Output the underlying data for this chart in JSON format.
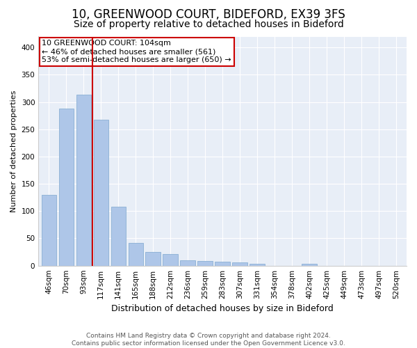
{
  "title1": "10, GREENWOOD COURT, BIDEFORD, EX39 3FS",
  "title2": "Size of property relative to detached houses in Bideford",
  "xlabel": "Distribution of detached houses by size in Bideford",
  "ylabel": "Number of detached properties",
  "categories": [
    "46sqm",
    "70sqm",
    "93sqm",
    "117sqm",
    "141sqm",
    "165sqm",
    "188sqm",
    "212sqm",
    "236sqm",
    "259sqm",
    "283sqm",
    "307sqm",
    "331sqm",
    "354sqm",
    "378sqm",
    "402sqm",
    "425sqm",
    "449sqm",
    "473sqm",
    "497sqm",
    "520sqm"
  ],
  "values": [
    130,
    288,
    313,
    268,
    108,
    42,
    25,
    21,
    10,
    9,
    7,
    6,
    3,
    0,
    0,
    4,
    0,
    0,
    0,
    0,
    0
  ],
  "bar_color": "#aec6e8",
  "bar_edge_color": "#8ab0d4",
  "vline_index": 2,
  "vline_color": "#cc0000",
  "annotation_box_color": "#cc0000",
  "marker_label1": "10 GREENWOOD COURT: 104sqm",
  "marker_label2": "← 46% of detached houses are smaller (561)",
  "marker_label3": "53% of semi-detached houses are larger (650) →",
  "footer1": "Contains HM Land Registry data © Crown copyright and database right 2024.",
  "footer2": "Contains public sector information licensed under the Open Government Licence v3.0.",
  "ylim": [
    0,
    420
  ],
  "yticks": [
    0,
    50,
    100,
    150,
    200,
    250,
    300,
    350,
    400
  ],
  "fig_bg": "#ffffff",
  "plot_bg": "#e8eef7",
  "grid_color": "#ffffff",
  "title1_fontsize": 12,
  "title2_fontsize": 10,
  "xlabel_fontsize": 9,
  "ylabel_fontsize": 8,
  "tick_fontsize": 7.5,
  "footer_fontsize": 6.5,
  "annot_fontsize": 8
}
